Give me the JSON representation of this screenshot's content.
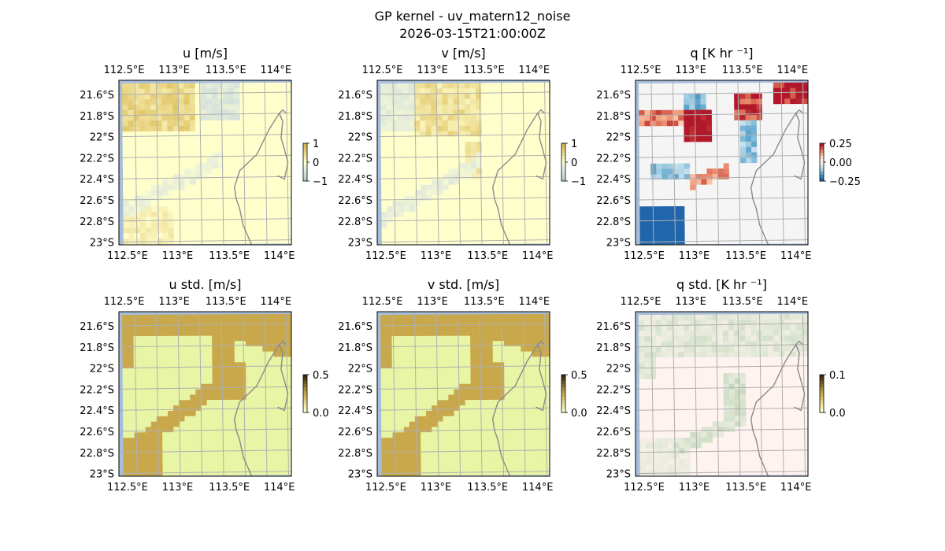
{
  "figure": {
    "title": "GP kernel - uv_matern12_noise",
    "subtitle": "2026-03-15T21:00:00Z"
  },
  "colors": {
    "coastline": "#8a8a8a",
    "ocean": "#a6bddb",
    "grid": "#b0b0b0",
    "land_yellow": "#ffffcc",
    "land_yellowgreen": "#e8f5a4",
    "land_pink": "#fff3f0",
    "land_grey": "#f5f5f5",
    "pos_cmap": [
      "#f7f7f7",
      "#fddbc7",
      "#f4a582",
      "#d6604d",
      "#b2182b"
    ],
    "neg_cmap": [
      "#f7f7f7",
      "#d1e5f0",
      "#92c5de",
      "#4393c3",
      "#2166ac"
    ],
    "u_cmap_pos": [
      "#ffffcc",
      "#f2e6a3",
      "#e6cf78",
      "#d9b84e"
    ],
    "u_cmap_neg": [
      "#ffffcc",
      "#e8efd9",
      "#d2e0da",
      "#b7cfd0"
    ],
    "std_uv_high": "#c8a84b",
    "std_q_high": "#8fb98f"
  },
  "map_extent": {
    "lon_ticks": [
      "112.5°E",
      "113°E",
      "113.5°E",
      "114°E"
    ],
    "lat_ticks": [
      "21.6°S",
      "21.8°S",
      "22°S",
      "22.2°S",
      "22.4°S",
      "22.6°S",
      "22.8°S",
      "23°S"
    ]
  },
  "chart_data": [
    {
      "type": "heatmap",
      "title": "u [m/s]",
      "field": "u",
      "colorbar_ticks": [
        "1",
        "0",
        "−1"
      ],
      "vlim": [
        -1,
        1
      ]
    },
    {
      "type": "heatmap",
      "title": "v [m/s]",
      "field": "v",
      "colorbar_ticks": [
        "1",
        "0",
        "−1"
      ],
      "vlim": [
        -1,
        1
      ]
    },
    {
      "type": "heatmap",
      "title": "q [K hr ⁻¹]",
      "field": "q",
      "colorbar_ticks": [
        "0.25",
        "0.00",
        "−0.25"
      ],
      "vlim": [
        -0.25,
        0.25
      ]
    },
    {
      "type": "heatmap",
      "title": "u std. [m/s]",
      "field": "u_std",
      "colorbar_ticks": [
        "0.5",
        "0.0"
      ],
      "vlim": [
        0,
        0.5
      ]
    },
    {
      "type": "heatmap",
      "title": "v std. [m/s]",
      "field": "v_std",
      "colorbar_ticks": [
        "0.5",
        "0.0"
      ],
      "vlim": [
        0,
        0.5
      ]
    },
    {
      "type": "heatmap",
      "title": "q std. [K hr ⁻¹]",
      "field": "q_std",
      "colorbar_ticks": [
        "0.1",
        "0.0"
      ],
      "vlim": [
        0,
        0.1
      ]
    }
  ]
}
